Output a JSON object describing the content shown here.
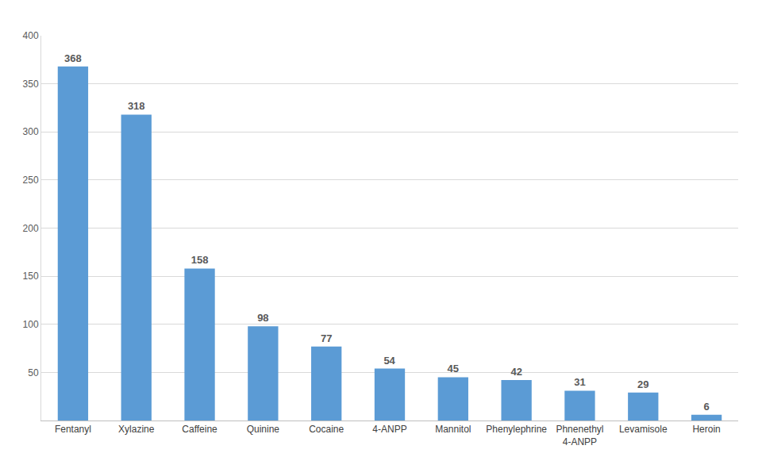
{
  "chart_data": {
    "type": "bar",
    "categories": [
      "Fentanyl",
      "Xylazine",
      "Caffeine",
      "Quinine",
      "Cocaine",
      "4-ANPP",
      "Mannitol",
      "Phenylephrine",
      "Phnenethyl 4-ANPP",
      "Levamisole",
      "Heroin"
    ],
    "values": [
      368,
      318,
      158,
      98,
      77,
      54,
      45,
      42,
      31,
      29,
      6
    ],
    "color": "#5b9bd5",
    "ylim": [
      0,
      400
    ],
    "yticks": [
      50,
      100,
      150,
      200,
      250,
      300,
      350,
      400
    ],
    "grid": true,
    "data_labels": true
  }
}
